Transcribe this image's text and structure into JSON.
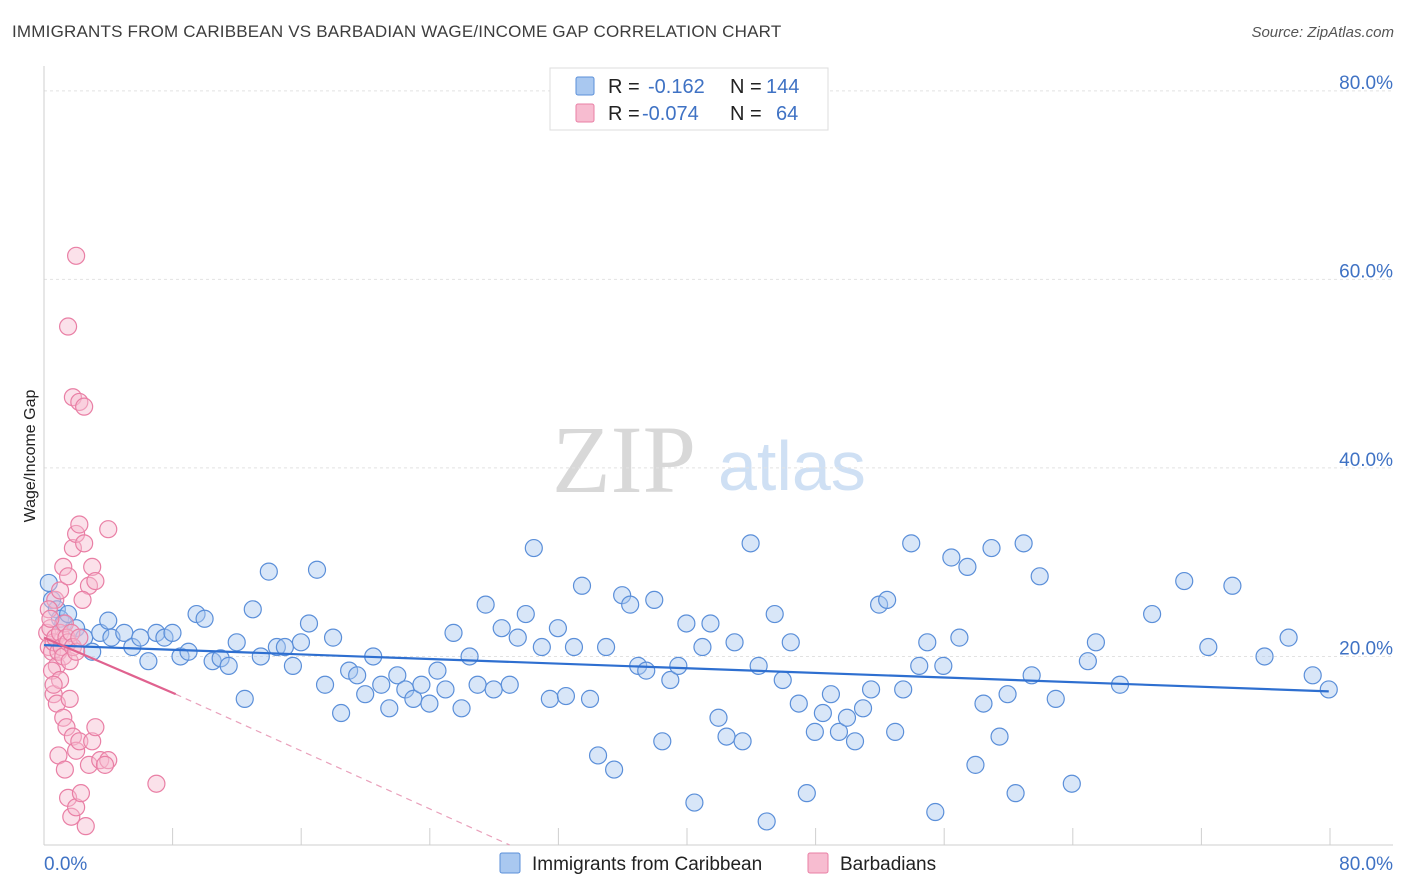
{
  "title": "IMMIGRANTS FROM CARIBBEAN VS BARBADIAN WAGE/INCOME GAP CORRELATION CHART",
  "source": "Source: ZipAtlas.com",
  "watermark": {
    "zip": "ZIP",
    "atlas": "atlas"
  },
  "legend_top": [
    {
      "r_label": "R =",
      "r_value": "-0.162",
      "n_label": "N =",
      "n_value": "144",
      "color": "#a9c8f0",
      "stroke": "#5b8fd9"
    },
    {
      "r_label": "R =",
      "r_value": "-0.074",
      "n_label": "N =",
      "n_value": "64",
      "color": "#f7bcd0",
      "stroke": "#e97fa5"
    }
  ],
  "legend_bottom": [
    {
      "label": "Immigrants from Caribbean",
      "color": "#a9c8f0",
      "stroke": "#5b8fd9"
    },
    {
      "label": "Barbadians",
      "color": "#f7bcd0",
      "stroke": "#e97fa5"
    }
  ],
  "chart_data": {
    "type": "scatter",
    "title": "IMMIGRANTS FROM CARIBBEAN VS BARBADIAN WAGE/INCOME GAP CORRELATION CHART",
    "xlabel": "",
    "ylabel": "Wage/Income Gap",
    "xlim": [
      0,
      84
    ],
    "ylim": [
      0,
      82
    ],
    "x_tick_labels": [
      {
        "value": 0,
        "label": "0.0%"
      },
      {
        "value": 80,
        "label": "80.0%"
      }
    ],
    "y_tick_labels": [
      {
        "value": 20,
        "label": "20.0%"
      },
      {
        "value": 40,
        "label": "40.0%"
      },
      {
        "value": 60,
        "label": "60.0%"
      },
      {
        "value": 80,
        "label": "80.0%"
      }
    ],
    "grid": true,
    "series": [
      {
        "name": "Immigrants from Caribbean",
        "color": "#a9c8f0",
        "stroke": "#5b8fd9",
        "trend": {
          "x0": 0,
          "y0": 21.2,
          "x1": 80,
          "y1": 16.3,
          "color": "#2e6fd0"
        },
        "points": [
          [
            0.3,
            27.8
          ],
          [
            0.5,
            26.0
          ],
          [
            0.8,
            25.0
          ],
          [
            1.0,
            24.0
          ],
          [
            1.2,
            23.5
          ],
          [
            1.5,
            24.5
          ],
          [
            2.0,
            23.0
          ],
          [
            2.5,
            22.0
          ],
          [
            3.0,
            20.5
          ],
          [
            3.5,
            22.5
          ],
          [
            4.0,
            23.8
          ],
          [
            4.2,
            22.0
          ],
          [
            5.0,
            22.5
          ],
          [
            5.5,
            21.0
          ],
          [
            6.0,
            22.0
          ],
          [
            6.5,
            19.5
          ],
          [
            7.0,
            22.5
          ],
          [
            7.5,
            22.0
          ],
          [
            8.0,
            22.5
          ],
          [
            8.5,
            20.0
          ],
          [
            9.0,
            20.5
          ],
          [
            9.5,
            24.5
          ],
          [
            10.0,
            24.0
          ],
          [
            10.5,
            19.5
          ],
          [
            11.0,
            19.8
          ],
          [
            11.5,
            19.0
          ],
          [
            12.0,
            21.5
          ],
          [
            12.5,
            15.5
          ],
          [
            13.0,
            25.0
          ],
          [
            13.5,
            20.0
          ],
          [
            14.0,
            29.0
          ],
          [
            14.5,
            21.0
          ],
          [
            15.0,
            21.0
          ],
          [
            15.5,
            19.0
          ],
          [
            16.0,
            21.5
          ],
          [
            16.5,
            23.5
          ],
          [
            17.0,
            29.2
          ],
          [
            17.5,
            17.0
          ],
          [
            18.0,
            22.0
          ],
          [
            18.5,
            14.0
          ],
          [
            19.0,
            18.5
          ],
          [
            19.5,
            18.0
          ],
          [
            20.0,
            16.0
          ],
          [
            20.5,
            20.0
          ],
          [
            21.0,
            17.0
          ],
          [
            21.5,
            14.5
          ],
          [
            22.0,
            18.0
          ],
          [
            22.5,
            16.5
          ],
          [
            23.0,
            15.5
          ],
          [
            23.5,
            17.0
          ],
          [
            24.0,
            15.0
          ],
          [
            24.5,
            18.5
          ],
          [
            25.0,
            16.5
          ],
          [
            25.5,
            22.5
          ],
          [
            26.0,
            14.5
          ],
          [
            26.5,
            20.0
          ],
          [
            27.0,
            17.0
          ],
          [
            27.5,
            25.5
          ],
          [
            28.0,
            16.5
          ],
          [
            28.5,
            23.0
          ],
          [
            29.0,
            17.0
          ],
          [
            29.5,
            22.0
          ],
          [
            30.0,
            24.5
          ],
          [
            30.5,
            31.5
          ],
          [
            31.0,
            21.0
          ],
          [
            31.5,
            15.5
          ],
          [
            32.0,
            23.0
          ],
          [
            32.5,
            15.8
          ],
          [
            33.0,
            21.0
          ],
          [
            33.5,
            27.5
          ],
          [
            34.0,
            15.5
          ],
          [
            34.5,
            9.5
          ],
          [
            35.0,
            21.0
          ],
          [
            35.5,
            8.0
          ],
          [
            36.0,
            26.5
          ],
          [
            36.5,
            25.5
          ],
          [
            37.0,
            19.0
          ],
          [
            37.5,
            18.5
          ],
          [
            38.0,
            26.0
          ],
          [
            38.5,
            11.0
          ],
          [
            39.0,
            17.5
          ],
          [
            39.5,
            19.0
          ],
          [
            40.0,
            23.5
          ],
          [
            40.5,
            4.5
          ],
          [
            41.0,
            21.0
          ],
          [
            41.5,
            23.5
          ],
          [
            42.0,
            13.5
          ],
          [
            42.5,
            11.5
          ],
          [
            43.0,
            21.5
          ],
          [
            43.5,
            11.0
          ],
          [
            44.0,
            32.0
          ],
          [
            44.5,
            19.0
          ],
          [
            45.0,
            2.5
          ],
          [
            45.5,
            24.5
          ],
          [
            46.0,
            17.5
          ],
          [
            46.5,
            21.5
          ],
          [
            47.0,
            15.0
          ],
          [
            47.5,
            5.5
          ],
          [
            48.0,
            12.0
          ],
          [
            48.5,
            14.0
          ],
          [
            49.0,
            16.0
          ],
          [
            49.5,
            12.0
          ],
          [
            50.0,
            13.5
          ],
          [
            50.5,
            11.0
          ],
          [
            51.0,
            14.5
          ],
          [
            51.5,
            16.5
          ],
          [
            52.0,
            25.5
          ],
          [
            52.5,
            26.0
          ],
          [
            53.0,
            12.0
          ],
          [
            53.5,
            16.5
          ],
          [
            54.0,
            32.0
          ],
          [
            54.5,
            19.0
          ],
          [
            55.0,
            21.5
          ],
          [
            55.5,
            3.5
          ],
          [
            56.0,
            19.0
          ],
          [
            56.5,
            30.5
          ],
          [
            57.0,
            22.0
          ],
          [
            57.5,
            29.5
          ],
          [
            58.0,
            8.5
          ],
          [
            58.5,
            15.0
          ],
          [
            59.0,
            31.5
          ],
          [
            59.5,
            11.5
          ],
          [
            60.0,
            16.0
          ],
          [
            60.5,
            5.5
          ],
          [
            61.0,
            32.0
          ],
          [
            61.5,
            18.0
          ],
          [
            62.0,
            28.5
          ],
          [
            63.0,
            15.5
          ],
          [
            64.0,
            6.5
          ],
          [
            65.0,
            19.5
          ],
          [
            65.5,
            21.5
          ],
          [
            67.0,
            17.0
          ],
          [
            69.0,
            24.5
          ],
          [
            71.0,
            28.0
          ],
          [
            72.5,
            21.0
          ],
          [
            74.0,
            27.5
          ],
          [
            76.0,
            20.0
          ],
          [
            77.5,
            22.0
          ],
          [
            79.0,
            18.0
          ],
          [
            80.0,
            16.5
          ]
        ]
      },
      {
        "name": "Barbadians",
        "color": "#f7bcd0",
        "stroke": "#e97fa5",
        "trend": {
          "x0": 0,
          "y0": 22.0,
          "x1": 8.2,
          "y1": 16.0,
          "color": "#e0628f"
        },
        "trend_ext": {
          "x0": 8.2,
          "y0": 16.0,
          "x1": 29.0,
          "y1": 0.0,
          "color": "#e9a0bb"
        },
        "points": [
          [
            0.2,
            22.5
          ],
          [
            0.3,
            21.0
          ],
          [
            0.4,
            23.0
          ],
          [
            0.5,
            20.5
          ],
          [
            0.6,
            21.5
          ],
          [
            0.7,
            22.0
          ],
          [
            0.8,
            19.0
          ],
          [
            0.9,
            20.5
          ],
          [
            1.0,
            22.5
          ],
          [
            1.1,
            21.0
          ],
          [
            1.2,
            20.0
          ],
          [
            1.3,
            23.5
          ],
          [
            1.4,
            22.0
          ],
          [
            1.5,
            21.5
          ],
          [
            1.6,
            19.5
          ],
          [
            1.7,
            22.5
          ],
          [
            1.8,
            21.0
          ],
          [
            2.0,
            20.5
          ],
          [
            2.2,
            22.0
          ],
          [
            0.5,
            18.5
          ],
          [
            0.6,
            16.0
          ],
          [
            0.8,
            15.0
          ],
          [
            1.0,
            17.5
          ],
          [
            1.2,
            13.5
          ],
          [
            1.4,
            12.5
          ],
          [
            1.6,
            15.5
          ],
          [
            1.8,
            11.5
          ],
          [
            2.0,
            10.0
          ],
          [
            2.2,
            11.0
          ],
          [
            0.9,
            9.5
          ],
          [
            1.3,
            8.0
          ],
          [
            1.5,
            5.0
          ],
          [
            1.7,
            3.0
          ],
          [
            2.0,
            4.0
          ],
          [
            2.3,
            5.5
          ],
          [
            2.6,
            2.0
          ],
          [
            2.8,
            8.5
          ],
          [
            3.0,
            11.0
          ],
          [
            3.2,
            12.5
          ],
          [
            3.5,
            9.0
          ],
          [
            0.7,
            26.0
          ],
          [
            1.0,
            27.0
          ],
          [
            1.2,
            29.5
          ],
          [
            1.5,
            28.5
          ],
          [
            1.8,
            31.5
          ],
          [
            2.0,
            33.0
          ],
          [
            2.2,
            34.0
          ],
          [
            2.5,
            32.0
          ],
          [
            2.8,
            27.5
          ],
          [
            3.0,
            29.5
          ],
          [
            3.2,
            28.0
          ],
          [
            4.0,
            33.5
          ],
          [
            1.5,
            55.0
          ],
          [
            1.8,
            47.5
          ],
          [
            2.2,
            47.0
          ],
          [
            2.5,
            46.5
          ],
          [
            2.0,
            62.5
          ],
          [
            4.0,
            9.0
          ],
          [
            7.0,
            6.5
          ],
          [
            0.3,
            25.0
          ],
          [
            0.4,
            24.0
          ],
          [
            2.4,
            26.0
          ],
          [
            0.6,
            17.0
          ],
          [
            3.8,
            8.5
          ]
        ]
      }
    ]
  }
}
